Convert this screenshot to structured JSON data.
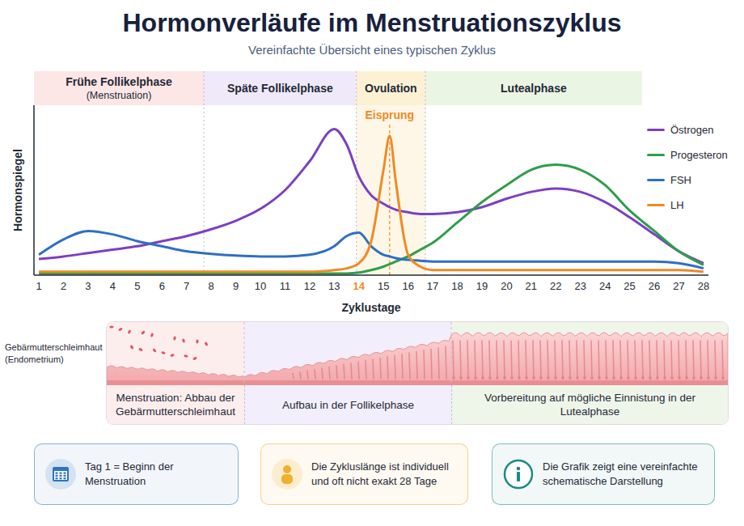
{
  "chart_data": {
    "type": "line",
    "title": "Hormonverläufe im Menstruationszyklus",
    "subtitle": "Vereinfachte Übersicht eines typischen Zyklus",
    "x_label": "Zyklustage",
    "y_label": "Hormonspiegel",
    "x": [
      1,
      2,
      3,
      4,
      5,
      6,
      7,
      8,
      9,
      10,
      11,
      12,
      13,
      13.5,
      14,
      14.5,
      15,
      15.25,
      15.5,
      16,
      16.5,
      17,
      18,
      19,
      20,
      21,
      22,
      23,
      24,
      25,
      26,
      27,
      28
    ],
    "xlim": [
      0.8,
      28.2
    ],
    "xticks": [
      1,
      2,
      3,
      4,
      5,
      6,
      7,
      8,
      9,
      10,
      11,
      12,
      13,
      14,
      15,
      16,
      17,
      18,
      19,
      20,
      21,
      22,
      23,
      24,
      25,
      26,
      27,
      28
    ],
    "ylim": [
      0,
      100
    ],
    "tick_labels": "x",
    "grid": false,
    "legend": "upper right",
    "series": [
      {
        "name": "Östrogen",
        "color": "#7d3fc0",
        "values": [
          9.5,
          11,
          13,
          15,
          17,
          20,
          23,
          27,
          32,
          39,
          50,
          67,
          86,
          77,
          58,
          47,
          42,
          40,
          38.5,
          37,
          36,
          36,
          37,
          40,
          45,
          49,
          51,
          49,
          43,
          34,
          24,
          14,
          7
        ]
      },
      {
        "name": "Progesteron",
        "color": "#2e9e4a",
        "values": [
          1,
          1,
          1,
          1,
          1,
          1,
          1,
          1,
          1,
          1,
          1,
          1,
          1,
          1,
          1.5,
          3,
          5,
          6.5,
          8,
          11,
          15,
          19,
          31,
          43,
          53,
          62,
          65,
          62,
          53,
          38,
          26,
          14,
          6
        ]
      },
      {
        "name": "FSH",
        "color": "#2f6fc4",
        "values": [
          12,
          21,
          26,
          24,
          20,
          17,
          14,
          12.5,
          11.5,
          11,
          11,
          12,
          17,
          23,
          25,
          17,
          12,
          11,
          10,
          9,
          8.5,
          8,
          8,
          8,
          8,
          8,
          8,
          8,
          8,
          8,
          8,
          7,
          4
        ]
      },
      {
        "name": "LH",
        "color": "#f08a24",
        "values": [
          2,
          2,
          2,
          2,
          2,
          2,
          2,
          2,
          2,
          2,
          2,
          2,
          3,
          4,
          7,
          20,
          62,
          82,
          55,
          12,
          5,
          3,
          3,
          3,
          3,
          3,
          3,
          3,
          3,
          3,
          3,
          3,
          2
        ]
      }
    ],
    "phases": [
      {
        "name": "Frühe Follikelphase",
        "subtitle": "(Menstruation)",
        "start": 0.8,
        "end": 7.7,
        "color": "#fde6e6"
      },
      {
        "name": "Späte Follikelphase",
        "start": 7.7,
        "end": 13.9,
        "color": "#efe9fa"
      },
      {
        "name": "Ovulation",
        "start": 13.9,
        "end": 16.7,
        "color": "#fdf1d4"
      },
      {
        "name": "Lutealphase",
        "start": 16.7,
        "end": 25.5,
        "color": "#ebf5e3"
      }
    ],
    "annotations": [
      {
        "text": "Eisprung",
        "x": 15.25,
        "color": "#f08a24"
      }
    ]
  },
  "endometrium": {
    "label": "Gebärmutterschleimhaut",
    "sublabel": "(Endometrium)",
    "sections": [
      {
        "text": "Menstruation: Abbau der Gebärmutterschleimhaut",
        "color": "#fdeeee"
      },
      {
        "text": "Aufbau in der Follikelphase",
        "color": "#f2eefb"
      },
      {
        "text": "Vorbereitung auf mögliche Einnistung in der Lutealphase",
        "color": "#eef6ea"
      }
    ]
  },
  "notes": [
    {
      "text": "Tag 1 = Beginn der Menstruation",
      "color": "#2f74c0"
    },
    {
      "text": "Die Zykluslänge ist individuell und oft nicht exakt 28 Tage",
      "color": "#f0b02c"
    },
    {
      "text": "Die Grafik zeigt eine vereinfachte schematische Darstellung",
      "color": "#1b8a87"
    }
  ]
}
